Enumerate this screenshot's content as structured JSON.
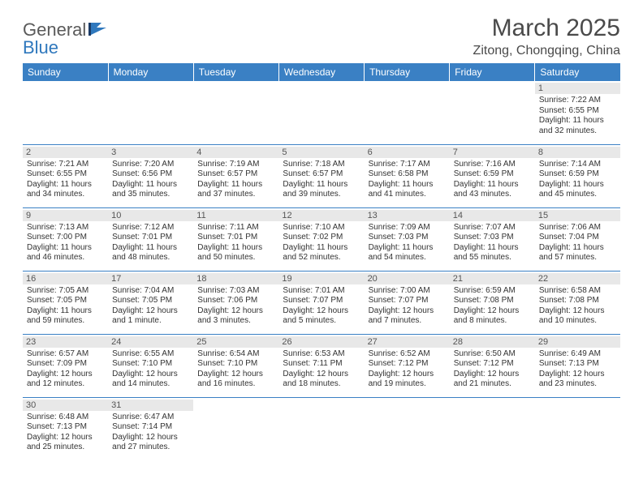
{
  "logo": {
    "general": "General",
    "blue": "Blue"
  },
  "title": "March 2025",
  "location": "Zitong, Chongqing, China",
  "colors": {
    "header_bg": "#3a80c4",
    "header_text": "#ffffff",
    "daynum_bg": "#e8e8e8",
    "border": "#3a80c4",
    "title_color": "#4a4a4a",
    "logo_gray": "#5a5a5a",
    "logo_blue": "#2f78bd"
  },
  "weekdays": [
    "Sunday",
    "Monday",
    "Tuesday",
    "Wednesday",
    "Thursday",
    "Friday",
    "Saturday"
  ],
  "weeks": [
    [
      null,
      null,
      null,
      null,
      null,
      null,
      {
        "day": "1",
        "sunrise": "Sunrise: 7:22 AM",
        "sunset": "Sunset: 6:55 PM",
        "daylight": "Daylight: 11 hours and 32 minutes."
      }
    ],
    [
      {
        "day": "2",
        "sunrise": "Sunrise: 7:21 AM",
        "sunset": "Sunset: 6:55 PM",
        "daylight": "Daylight: 11 hours and 34 minutes."
      },
      {
        "day": "3",
        "sunrise": "Sunrise: 7:20 AM",
        "sunset": "Sunset: 6:56 PM",
        "daylight": "Daylight: 11 hours and 35 minutes."
      },
      {
        "day": "4",
        "sunrise": "Sunrise: 7:19 AM",
        "sunset": "Sunset: 6:57 PM",
        "daylight": "Daylight: 11 hours and 37 minutes."
      },
      {
        "day": "5",
        "sunrise": "Sunrise: 7:18 AM",
        "sunset": "Sunset: 6:57 PM",
        "daylight": "Daylight: 11 hours and 39 minutes."
      },
      {
        "day": "6",
        "sunrise": "Sunrise: 7:17 AM",
        "sunset": "Sunset: 6:58 PM",
        "daylight": "Daylight: 11 hours and 41 minutes."
      },
      {
        "day": "7",
        "sunrise": "Sunrise: 7:16 AM",
        "sunset": "Sunset: 6:59 PM",
        "daylight": "Daylight: 11 hours and 43 minutes."
      },
      {
        "day": "8",
        "sunrise": "Sunrise: 7:14 AM",
        "sunset": "Sunset: 6:59 PM",
        "daylight": "Daylight: 11 hours and 45 minutes."
      }
    ],
    [
      {
        "day": "9",
        "sunrise": "Sunrise: 7:13 AM",
        "sunset": "Sunset: 7:00 PM",
        "daylight": "Daylight: 11 hours and 46 minutes."
      },
      {
        "day": "10",
        "sunrise": "Sunrise: 7:12 AM",
        "sunset": "Sunset: 7:01 PM",
        "daylight": "Daylight: 11 hours and 48 minutes."
      },
      {
        "day": "11",
        "sunrise": "Sunrise: 7:11 AM",
        "sunset": "Sunset: 7:01 PM",
        "daylight": "Daylight: 11 hours and 50 minutes."
      },
      {
        "day": "12",
        "sunrise": "Sunrise: 7:10 AM",
        "sunset": "Sunset: 7:02 PM",
        "daylight": "Daylight: 11 hours and 52 minutes."
      },
      {
        "day": "13",
        "sunrise": "Sunrise: 7:09 AM",
        "sunset": "Sunset: 7:03 PM",
        "daylight": "Daylight: 11 hours and 54 minutes."
      },
      {
        "day": "14",
        "sunrise": "Sunrise: 7:07 AM",
        "sunset": "Sunset: 7:03 PM",
        "daylight": "Daylight: 11 hours and 55 minutes."
      },
      {
        "day": "15",
        "sunrise": "Sunrise: 7:06 AM",
        "sunset": "Sunset: 7:04 PM",
        "daylight": "Daylight: 11 hours and 57 minutes."
      }
    ],
    [
      {
        "day": "16",
        "sunrise": "Sunrise: 7:05 AM",
        "sunset": "Sunset: 7:05 PM",
        "daylight": "Daylight: 11 hours and 59 minutes."
      },
      {
        "day": "17",
        "sunrise": "Sunrise: 7:04 AM",
        "sunset": "Sunset: 7:05 PM",
        "daylight": "Daylight: 12 hours and 1 minute."
      },
      {
        "day": "18",
        "sunrise": "Sunrise: 7:03 AM",
        "sunset": "Sunset: 7:06 PM",
        "daylight": "Daylight: 12 hours and 3 minutes."
      },
      {
        "day": "19",
        "sunrise": "Sunrise: 7:01 AM",
        "sunset": "Sunset: 7:07 PM",
        "daylight": "Daylight: 12 hours and 5 minutes."
      },
      {
        "day": "20",
        "sunrise": "Sunrise: 7:00 AM",
        "sunset": "Sunset: 7:07 PM",
        "daylight": "Daylight: 12 hours and 7 minutes."
      },
      {
        "day": "21",
        "sunrise": "Sunrise: 6:59 AM",
        "sunset": "Sunset: 7:08 PM",
        "daylight": "Daylight: 12 hours and 8 minutes."
      },
      {
        "day": "22",
        "sunrise": "Sunrise: 6:58 AM",
        "sunset": "Sunset: 7:08 PM",
        "daylight": "Daylight: 12 hours and 10 minutes."
      }
    ],
    [
      {
        "day": "23",
        "sunrise": "Sunrise: 6:57 AM",
        "sunset": "Sunset: 7:09 PM",
        "daylight": "Daylight: 12 hours and 12 minutes."
      },
      {
        "day": "24",
        "sunrise": "Sunrise: 6:55 AM",
        "sunset": "Sunset: 7:10 PM",
        "daylight": "Daylight: 12 hours and 14 minutes."
      },
      {
        "day": "25",
        "sunrise": "Sunrise: 6:54 AM",
        "sunset": "Sunset: 7:10 PM",
        "daylight": "Daylight: 12 hours and 16 minutes."
      },
      {
        "day": "26",
        "sunrise": "Sunrise: 6:53 AM",
        "sunset": "Sunset: 7:11 PM",
        "daylight": "Daylight: 12 hours and 18 minutes."
      },
      {
        "day": "27",
        "sunrise": "Sunrise: 6:52 AM",
        "sunset": "Sunset: 7:12 PM",
        "daylight": "Daylight: 12 hours and 19 minutes."
      },
      {
        "day": "28",
        "sunrise": "Sunrise: 6:50 AM",
        "sunset": "Sunset: 7:12 PM",
        "daylight": "Daylight: 12 hours and 21 minutes."
      },
      {
        "day": "29",
        "sunrise": "Sunrise: 6:49 AM",
        "sunset": "Sunset: 7:13 PM",
        "daylight": "Daylight: 12 hours and 23 minutes."
      }
    ],
    [
      {
        "day": "30",
        "sunrise": "Sunrise: 6:48 AM",
        "sunset": "Sunset: 7:13 PM",
        "daylight": "Daylight: 12 hours and 25 minutes."
      },
      {
        "day": "31",
        "sunrise": "Sunrise: 6:47 AM",
        "sunset": "Sunset: 7:14 PM",
        "daylight": "Daylight: 12 hours and 27 minutes."
      },
      null,
      null,
      null,
      null,
      null
    ]
  ]
}
